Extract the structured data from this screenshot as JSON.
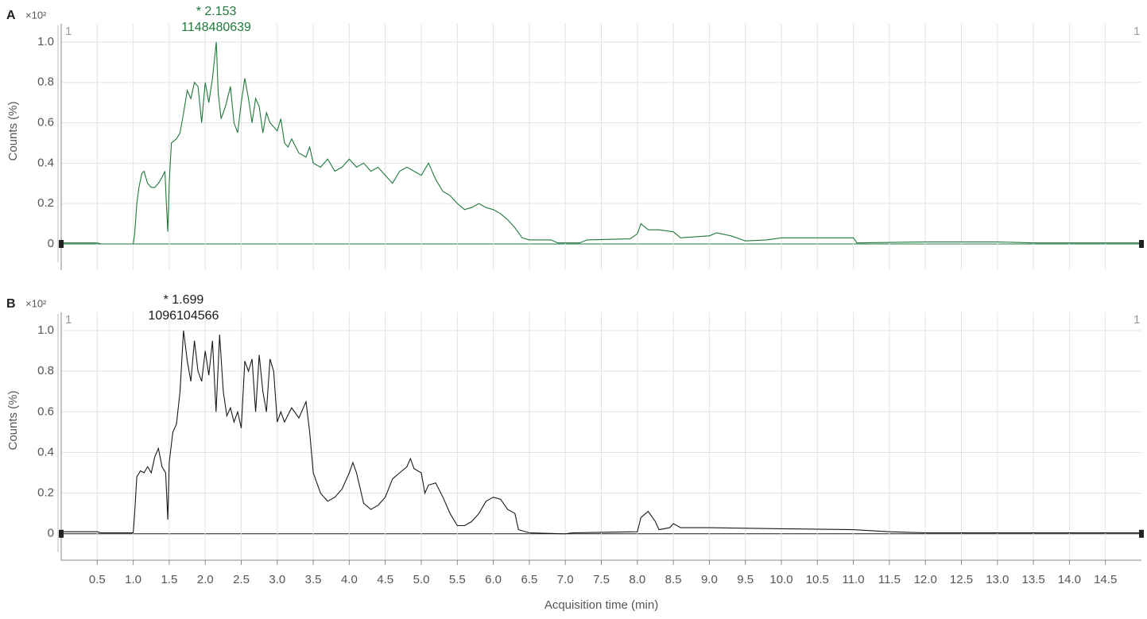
{
  "chart_data": [
    {
      "type": "line",
      "panel_label": "A",
      "scale_label": "×10²",
      "corner_label": "1",
      "ylabel": "Counts (%)",
      "annotations": [
        "* 2.153",
        "1148480639"
      ],
      "xlim": [
        0,
        15
      ],
      "ylim": [
        -0.13,
        1.09
      ],
      "xticks": [
        0.5,
        1,
        1.5,
        2,
        2.5,
        3,
        3.5,
        4,
        4.5,
        5,
        5.5,
        6,
        6.5,
        7,
        7.5,
        8,
        8.5,
        9,
        9.5,
        10,
        10.5,
        11,
        11.5,
        12,
        12.5,
        13,
        13.5,
        14,
        14.5
      ],
      "yticks": [
        0,
        0.2,
        0.4,
        0.6,
        0.8,
        {
          "value": 1,
          "label": "1.0"
        }
      ],
      "grid": true,
      "x": [
        0,
        0.3,
        0.5,
        0.55,
        0.9,
        1.0,
        1.02,
        1.05,
        1.08,
        1.12,
        1.15,
        1.2,
        1.25,
        1.3,
        1.35,
        1.4,
        1.44,
        1.46,
        1.48,
        1.5,
        1.53,
        1.6,
        1.65,
        1.7,
        1.75,
        1.8,
        1.85,
        1.9,
        1.95,
        2.0,
        2.05,
        2.1,
        2.153,
        2.18,
        2.22,
        2.28,
        2.35,
        2.4,
        2.45,
        2.5,
        2.55,
        2.6,
        2.65,
        2.7,
        2.75,
        2.8,
        2.85,
        2.9,
        3.0,
        3.05,
        3.1,
        3.15,
        3.2,
        3.3,
        3.4,
        3.45,
        3.5,
        3.6,
        3.7,
        3.8,
        3.9,
        4.0,
        4.1,
        4.2,
        4.3,
        4.4,
        4.5,
        4.6,
        4.7,
        4.8,
        4.9,
        5.0,
        5.1,
        5.2,
        5.3,
        5.4,
        5.5,
        5.6,
        5.7,
        5.8,
        5.9,
        6.0,
        6.1,
        6.2,
        6.3,
        6.4,
        6.5,
        6.8,
        6.9,
        7.2,
        7.3,
        7.9,
        8.0,
        8.05,
        8.15,
        8.3,
        8.5,
        8.6,
        9.0,
        9.1,
        9.3,
        9.5,
        9.8,
        10.0,
        10.5,
        11.0,
        11.05,
        12.0,
        13.0,
        13.5,
        15
      ],
      "series": [
        {
          "color": "#1f7a3c",
          "values": [
            0.005,
            0.005,
            0.005,
            0,
            0,
            0,
            0.05,
            0.2,
            0.28,
            0.35,
            0.36,
            0.3,
            0.28,
            0.28,
            0.3,
            0.33,
            0.36,
            0.2,
            0.06,
            0.3,
            0.5,
            0.52,
            0.55,
            0.65,
            0.76,
            0.72,
            0.8,
            0.78,
            0.6,
            0.8,
            0.7,
            0.82,
            1.0,
            0.75,
            0.62,
            0.68,
            0.78,
            0.6,
            0.55,
            0.7,
            0.82,
            0.72,
            0.6,
            0.72,
            0.68,
            0.55,
            0.65,
            0.6,
            0.56,
            0.62,
            0.5,
            0.48,
            0.52,
            0.45,
            0.43,
            0.48,
            0.4,
            0.38,
            0.42,
            0.36,
            0.38,
            0.42,
            0.38,
            0.4,
            0.36,
            0.38,
            0.34,
            0.3,
            0.36,
            0.38,
            0.36,
            0.34,
            0.4,
            0.32,
            0.26,
            0.24,
            0.2,
            0.17,
            0.18,
            0.2,
            0.18,
            0.17,
            0.15,
            0.12,
            0.08,
            0.03,
            0.02,
            0.02,
            0.005,
            0.005,
            0.02,
            0.025,
            0.05,
            0.1,
            0.07,
            0.07,
            0.06,
            0.03,
            0.04,
            0.055,
            0.04,
            0.015,
            0.02,
            0.03,
            0.03,
            0.03,
            0.005,
            0.01,
            0.01,
            0.005,
            0.005
          ]
        }
      ]
    },
    {
      "type": "line",
      "panel_label": "B",
      "scale_label": "×10²",
      "corner_label": "1",
      "ylabel": "Counts (%)",
      "xlabel": "Acquisition time (min)",
      "annotations": [
        "* 1.699",
        "1096104566"
      ],
      "xlim": [
        0,
        15
      ],
      "ylim": [
        -0.13,
        1.09
      ],
      "xticks": [
        0.5,
        {
          "value": 1,
          "label": "1.0"
        },
        1.5,
        {
          "value": 2,
          "label": "2.0"
        },
        2.5,
        {
          "value": 3,
          "label": "3.0"
        },
        3.5,
        {
          "value": 4,
          "label": "4.0"
        },
        4.5,
        {
          "value": 5,
          "label": "5.0"
        },
        5.5,
        {
          "value": 6,
          "label": "6.0"
        },
        6.5,
        {
          "value": 7,
          "label": "7.0"
        },
        7.5,
        {
          "value": 8,
          "label": "8.0"
        },
        8.5,
        {
          "value": 9,
          "label": "9.0"
        },
        9.5,
        {
          "value": 10,
          "label": "10.0"
        },
        10.5,
        {
          "value": 11,
          "label": "11.0"
        },
        11.5,
        {
          "value": 12,
          "label": "12.0"
        },
        12.5,
        {
          "value": 13,
          "label": "13.0"
        },
        13.5,
        {
          "value": 14,
          "label": "14.0"
        },
        14.5
      ],
      "yticks": [
        0,
        0.2,
        0.4,
        0.6,
        0.8,
        {
          "value": 1,
          "label": "1.0"
        }
      ],
      "grid": true,
      "x": [
        0,
        0.5,
        0.55,
        1.0,
        1.02,
        1.05,
        1.1,
        1.15,
        1.2,
        1.25,
        1.3,
        1.35,
        1.4,
        1.45,
        1.48,
        1.5,
        1.55,
        1.6,
        1.65,
        1.699,
        1.75,
        1.8,
        1.85,
        1.9,
        1.95,
        2.0,
        2.05,
        2.1,
        2.15,
        2.2,
        2.25,
        2.3,
        2.35,
        2.4,
        2.45,
        2.5,
        2.55,
        2.6,
        2.65,
        2.7,
        2.75,
        2.8,
        2.85,
        2.9,
        2.95,
        3.0,
        3.05,
        3.1,
        3.2,
        3.3,
        3.4,
        3.45,
        3.5,
        3.6,
        3.7,
        3.8,
        3.9,
        4.0,
        4.05,
        4.1,
        4.2,
        4.3,
        4.4,
        4.5,
        4.6,
        4.7,
        4.8,
        4.85,
        4.9,
        5.0,
        5.05,
        5.1,
        5.2,
        5.3,
        5.4,
        5.5,
        5.6,
        5.7,
        5.8,
        5.9,
        6.0,
        6.1,
        6.2,
        6.3,
        6.35,
        6.5,
        7.0,
        7.1,
        8.0,
        8.05,
        8.15,
        8.25,
        8.3,
        8.45,
        8.5,
        8.6,
        9.0,
        10.0,
        11.0,
        11.5,
        12.0,
        15
      ],
      "series": [
        {
          "color": "#1a1a1a",
          "values": [
            0.01,
            0.01,
            0.005,
            0.005,
            0.1,
            0.28,
            0.31,
            0.3,
            0.33,
            0.3,
            0.38,
            0.42,
            0.33,
            0.3,
            0.07,
            0.35,
            0.5,
            0.54,
            0.7,
            1.0,
            0.85,
            0.75,
            0.95,
            0.8,
            0.75,
            0.9,
            0.78,
            0.95,
            0.6,
            0.98,
            0.7,
            0.58,
            0.62,
            0.55,
            0.6,
            0.52,
            0.85,
            0.8,
            0.86,
            0.6,
            0.88,
            0.7,
            0.6,
            0.86,
            0.8,
            0.55,
            0.6,
            0.55,
            0.62,
            0.57,
            0.65,
            0.5,
            0.3,
            0.2,
            0.16,
            0.18,
            0.22,
            0.3,
            0.35,
            0.3,
            0.15,
            0.12,
            0.14,
            0.18,
            0.27,
            0.3,
            0.33,
            0.37,
            0.32,
            0.3,
            0.2,
            0.24,
            0.25,
            0.18,
            0.1,
            0.04,
            0.04,
            0.06,
            0.1,
            0.16,
            0.18,
            0.17,
            0.12,
            0.1,
            0.02,
            0.005,
            0,
            0.005,
            0.01,
            0.08,
            0.11,
            0.06,
            0.02,
            0.03,
            0.05,
            0.03,
            0.03,
            0.025,
            0.02,
            0.01,
            0.005,
            0.005
          ]
        }
      ]
    }
  ]
}
